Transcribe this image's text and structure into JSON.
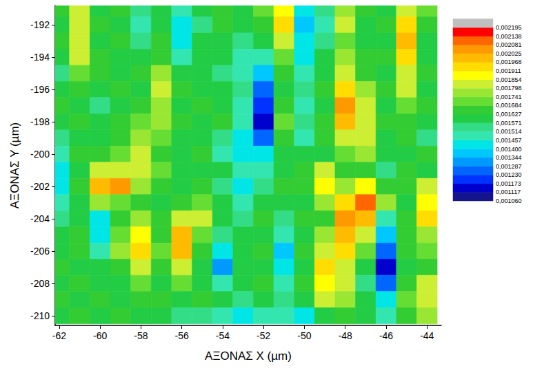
{
  "chart_data": {
    "type": "contour",
    "xlabel": "ΑΞΟΝΑΣ X (µm)",
    "ylabel": "ΑΞΟΝΑΣ Y (µm)",
    "xlim": [
      -62.2,
      -43.3
    ],
    "ylim": [
      -210.6,
      -190.8
    ],
    "xticks": [
      -62,
      -60,
      -58,
      -56,
      -54,
      -52,
      -50,
      -48,
      -46,
      -44
    ],
    "yticks": [
      -210,
      -208,
      -206,
      -204,
      -202,
      -200,
      -198,
      -196,
      -194,
      -192
    ],
    "grid": false,
    "x": [
      -62,
      -61,
      -60,
      -59,
      -58,
      -57,
      -56,
      -55,
      -54,
      -53,
      -52,
      -51,
      -50,
      -49,
      -48,
      -47,
      -46,
      -45,
      -44
    ],
    "y": [
      -191,
      -192,
      -193,
      -194,
      -195,
      -196,
      -197,
      -198,
      -199,
      -200,
      -201,
      -202,
      -203,
      -204,
      -205,
      -206,
      -207,
      -208,
      -209,
      -210
    ],
    "values": [
      [
        0.00165,
        0.0018,
        0.0016,
        0.00165,
        0.00155,
        0.0016,
        0.0015,
        0.0016,
        0.00165,
        0.0016,
        0.0017,
        0.0019,
        0.0014,
        0.00155,
        0.00175,
        0.00165,
        0.0016,
        0.00185,
        0.0017
      ],
      [
        0.0016,
        0.00185,
        0.00165,
        0.0016,
        0.0015,
        0.0016,
        0.00145,
        0.00155,
        0.00165,
        0.0016,
        0.00165,
        0.00195,
        0.00135,
        0.0015,
        0.0018,
        0.0016,
        0.00165,
        0.00195,
        0.00165
      ],
      [
        0.00165,
        0.0018,
        0.0016,
        0.00165,
        0.00155,
        0.00165,
        0.00145,
        0.0016,
        0.0016,
        0.00155,
        0.0016,
        0.0018,
        0.0014,
        0.00155,
        0.0017,
        0.0016,
        0.0016,
        0.002,
        0.0016
      ],
      [
        0.0016,
        0.0018,
        0.00165,
        0.0016,
        0.0016,
        0.00165,
        0.0015,
        0.0016,
        0.0016,
        0.0015,
        0.0015,
        0.0017,
        0.00145,
        0.0016,
        0.00175,
        0.00165,
        0.00165,
        0.00195,
        0.0016
      ],
      [
        0.00155,
        0.0017,
        0.00165,
        0.0016,
        0.00165,
        0.00175,
        0.0016,
        0.0016,
        0.00155,
        0.0015,
        0.00135,
        0.00165,
        0.0015,
        0.0016,
        0.0018,
        0.00165,
        0.0016,
        0.00185,
        0.00165
      ],
      [
        0.0016,
        0.00165,
        0.0016,
        0.00165,
        0.0016,
        0.0018,
        0.00165,
        0.0016,
        0.0016,
        0.00155,
        0.00125,
        0.0016,
        0.00155,
        0.00165,
        0.00195,
        0.00175,
        0.00165,
        0.0018,
        0.0016
      ],
      [
        0.00165,
        0.0016,
        0.00155,
        0.0016,
        0.00165,
        0.00178,
        0.0016,
        0.00165,
        0.0016,
        0.0015,
        0.0012,
        0.00165,
        0.0015,
        0.0016,
        0.00205,
        0.0018,
        0.0016,
        0.0017,
        0.00165
      ],
      [
        0.0016,
        0.00165,
        0.0016,
        0.00165,
        0.0017,
        0.00175,
        0.00165,
        0.0016,
        0.00165,
        0.0015,
        0.00115,
        0.0017,
        0.00155,
        0.00165,
        0.002,
        0.00185,
        0.00165,
        0.00165,
        0.0016
      ],
      [
        0.00155,
        0.0016,
        0.0016,
        0.00165,
        0.00175,
        0.0017,
        0.0016,
        0.0016,
        0.00155,
        0.00145,
        0.00125,
        0.00165,
        0.0015,
        0.00165,
        0.00185,
        0.0018,
        0.0016,
        0.00165,
        0.00155
      ],
      [
        0.0015,
        0.00165,
        0.00165,
        0.0017,
        0.0018,
        0.00165,
        0.0016,
        0.00165,
        0.0015,
        0.0014,
        0.0014,
        0.0016,
        0.0016,
        0.0016,
        0.0017,
        0.00175,
        0.0016,
        0.0016,
        0.00165
      ],
      [
        0.00145,
        0.0016,
        0.0018,
        0.00185,
        0.0018,
        0.0017,
        0.0016,
        0.0016,
        0.0016,
        0.0015,
        0.0015,
        0.0016,
        0.00165,
        0.0018,
        0.00165,
        0.00165,
        0.00155,
        0.00165,
        0.0016
      ],
      [
        0.00145,
        0.00165,
        0.002,
        0.00205,
        0.00175,
        0.00165,
        0.0016,
        0.00165,
        0.00155,
        0.0014,
        0.00155,
        0.00165,
        0.00165,
        0.0019,
        0.00175,
        0.0019,
        0.00165,
        0.00165,
        0.00185
      ],
      [
        0.0015,
        0.0016,
        0.00175,
        0.0017,
        0.00165,
        0.0016,
        0.00165,
        0.0017,
        0.0016,
        0.0015,
        0.0016,
        0.0016,
        0.0016,
        0.00175,
        0.00195,
        0.0021,
        0.00175,
        0.0016,
        0.0019
      ],
      [
        0.00155,
        0.0016,
        0.00145,
        0.00165,
        0.00175,
        0.00165,
        0.00185,
        0.0018,
        0.0016,
        0.00155,
        0.00165,
        0.00155,
        0.00165,
        0.00165,
        0.00205,
        0.002,
        0.0015,
        0.00165,
        0.00195
      ],
      [
        0.0016,
        0.00165,
        0.0014,
        0.0017,
        0.0019,
        0.00165,
        0.002,
        0.0017,
        0.00155,
        0.0016,
        0.0016,
        0.0015,
        0.0016,
        0.00175,
        0.002,
        0.0018,
        0.00135,
        0.00165,
        0.00175
      ],
      [
        0.0016,
        0.00165,
        0.0015,
        0.00175,
        0.00195,
        0.0017,
        0.002,
        0.00165,
        0.00145,
        0.0016,
        0.00165,
        0.00135,
        0.00165,
        0.00185,
        0.00195,
        0.0017,
        0.00125,
        0.00165,
        0.0017
      ],
      [
        0.00165,
        0.0016,
        0.0016,
        0.00165,
        0.0018,
        0.00165,
        0.00185,
        0.0016,
        0.0013,
        0.0016,
        0.0016,
        0.0014,
        0.0016,
        0.00195,
        0.00185,
        0.0016,
        0.00115,
        0.0016,
        0.00165
      ],
      [
        0.0016,
        0.00165,
        0.0016,
        0.0016,
        0.0017,
        0.0016,
        0.0017,
        0.0016,
        0.0015,
        0.0016,
        0.00165,
        0.0015,
        0.00165,
        0.0019,
        0.0018,
        0.00155,
        0.00125,
        0.00165,
        0.0018
      ],
      [
        0.00165,
        0.0016,
        0.00165,
        0.0016,
        0.00165,
        0.00165,
        0.0016,
        0.00165,
        0.0016,
        0.00155,
        0.0016,
        0.00155,
        0.0016,
        0.0018,
        0.00175,
        0.0016,
        0.0014,
        0.0017,
        0.00185
      ],
      [
        0.0016,
        0.00165,
        0.0016,
        0.00165,
        0.0016,
        0.0016,
        0.00155,
        0.00155,
        0.0015,
        0.00145,
        0.0015,
        0.0015,
        0.00145,
        0.0016,
        0.00165,
        0.0016,
        0.0015,
        0.00165,
        0.00175
      ]
    ],
    "colorbar": {
      "range": [
        0.00106,
        0.002195
      ],
      "ticks": [
        {
          "value": 0.00106,
          "label": "0,001060"
        },
        {
          "value": 0.001117,
          "label": "0,001117"
        },
        {
          "value": 0.001173,
          "label": "0,001173"
        },
        {
          "value": 0.00123,
          "label": "0,001230"
        },
        {
          "value": 0.001287,
          "label": "0,001287"
        },
        {
          "value": 0.001344,
          "label": "0,001344"
        },
        {
          "value": 0.0014,
          "label": "0,001400"
        },
        {
          "value": 0.001457,
          "label": "0,001457"
        },
        {
          "value": 0.001514,
          "label": "0,001514"
        },
        {
          "value": 0.001571,
          "label": "0,001571"
        },
        {
          "value": 0.001627,
          "label": "0,001627"
        },
        {
          "value": 0.001684,
          "label": "0,001684"
        },
        {
          "value": 0.001741,
          "label": "0,001741"
        },
        {
          "value": 0.001798,
          "label": "0,001798"
        },
        {
          "value": 0.001854,
          "label": "0,001854"
        },
        {
          "value": 0.001911,
          "label": "0,001911"
        },
        {
          "value": 0.001968,
          "label": "0,001968"
        },
        {
          "value": 0.002025,
          "label": "0,002025"
        },
        {
          "value": 0.002081,
          "label": "0,002081"
        },
        {
          "value": 0.002138,
          "label": "0,002138"
        },
        {
          "value": 0.002195,
          "label": "0,002195"
        }
      ],
      "colors": [
        "#14148c",
        "#0000cc",
        "#0033ff",
        "#0066ff",
        "#0099ff",
        "#00c8ff",
        "#00e6e6",
        "#33e6b0",
        "#33dd88",
        "#22cc44",
        "#33cc33",
        "#66dd33",
        "#99e633",
        "#ccee33",
        "#ffff00",
        "#ffdd00",
        "#ffbb00",
        "#ff9900",
        "#ff6600",
        "#ff0000",
        "#c0c0c0"
      ]
    }
  }
}
